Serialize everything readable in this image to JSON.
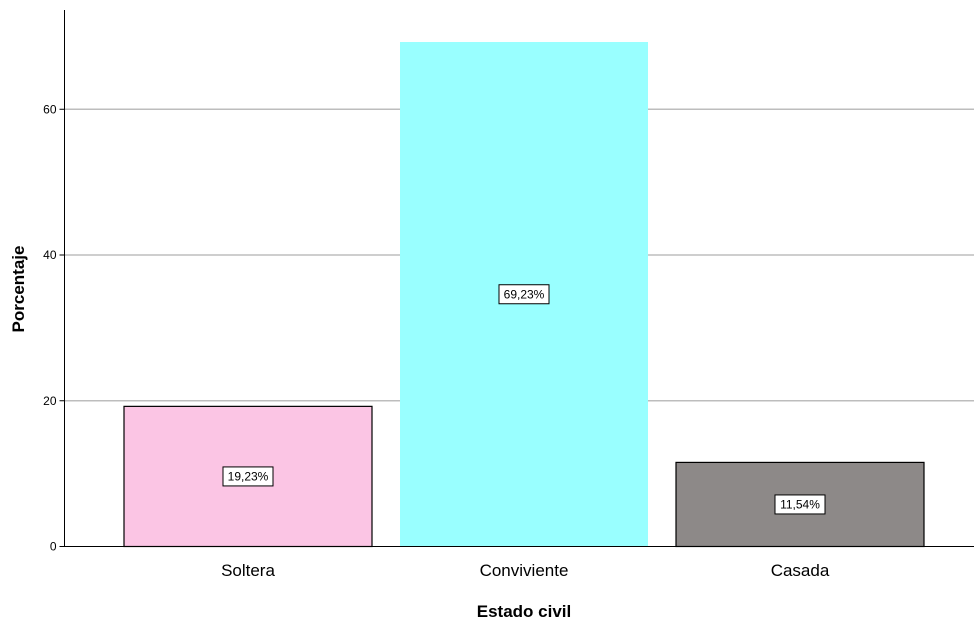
{
  "chart_data": {
    "type": "bar",
    "categories": [
      "Soltera",
      "Conviviente",
      "Casada"
    ],
    "values": [
      19.23,
      69.23,
      11.54
    ],
    "data_labels": [
      "19,23%",
      "69,23%",
      "11,54%"
    ],
    "bar_colors": [
      "#fbc5e4",
      "#99ffff",
      "#8d8988"
    ],
    "bar_outlines": [
      "#000000",
      "none",
      "#000000"
    ],
    "xlabel": "Estado civil",
    "ylabel": "Porcentaje",
    "ylim": [
      0,
      69.23
    ],
    "yticks": [
      0,
      20,
      40,
      60
    ],
    "ytick_labels": [
      "0",
      "20",
      "40",
      "60"
    ],
    "grid": true
  }
}
